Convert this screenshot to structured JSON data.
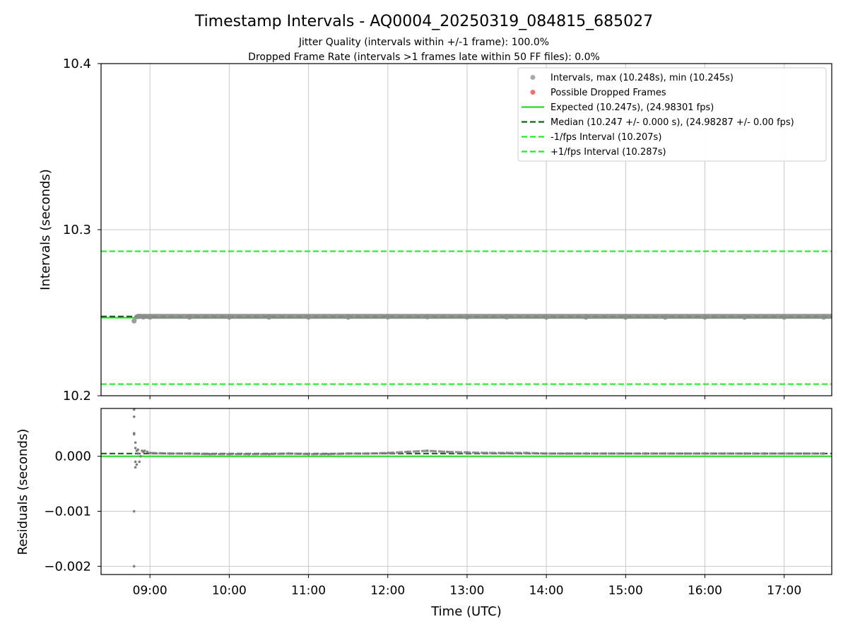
{
  "chart_data": [
    {
      "type": "scatter",
      "title": "Timestamp Intervals - AQ0004_20250319_084815_685027",
      "subtitles": [
        "Jitter Quality (intervals within +/-1 frame): 100.0%",
        "Dropped Frame Rate (intervals >1 frames late within 50 FF files): 0.0%"
      ],
      "ylabel": "Intervals (seconds)",
      "ylim": [
        10.2,
        10.4
      ],
      "yticks": [
        "10.2",
        "10.3",
        "10.4"
      ],
      "ytick_values": [
        10.2,
        10.3,
        10.4
      ],
      "grid": true,
      "legend_position": "top-right",
      "legend": [
        {
          "label": "Intervals, max (10.248s), min (10.245s)",
          "kind": "marker",
          "color": "#aaaaaa"
        },
        {
          "label": "Possible Dropped Frames",
          "kind": "marker",
          "color": "#f07070"
        },
        {
          "label": "Expected (10.247s), (24.98301 fps)",
          "kind": "solid",
          "color": "#22dd22"
        },
        {
          "label": "Median (10.247 +/- 0.000 s), (24.98287 +/- 0.00 fps)",
          "kind": "dashed",
          "color": "#116611"
        },
        {
          "label": "-1/fps Interval (10.207s)",
          "kind": "dashed",
          "color": "#22ee22"
        },
        {
          "label": "+1/fps Interval (10.287s)",
          "kind": "dashed",
          "color": "#22ee22"
        }
      ],
      "reference_lines": {
        "expected": 10.247,
        "median": 10.2473,
        "minus_interval": 10.207,
        "plus_interval": 10.287
      },
      "series": [
        {
          "name": "Intervals, max (10.248s), min (10.245s)",
          "x": [
            "08:48",
            "08:50",
            "08:52",
            "08:55",
            "09:00",
            "09:30",
            "10:00",
            "10:30",
            "11:00",
            "11:30",
            "12:00",
            "12:30",
            "13:00",
            "13:30",
            "14:00",
            "14:30",
            "15:00",
            "15:30",
            "16:00",
            "16:30",
            "17:00",
            "17:30"
          ],
          "values": [
            10.245,
            10.2475,
            10.2478,
            10.2474,
            10.2473,
            10.2473,
            10.2473,
            10.2473,
            10.2473,
            10.2473,
            10.2474,
            10.2475,
            10.2474,
            10.2474,
            10.2473,
            10.2473,
            10.2473,
            10.2473,
            10.2473,
            10.2473,
            10.2473,
            10.2473
          ]
        }
      ]
    },
    {
      "type": "scatter",
      "xlabel": "Time (UTC)",
      "ylabel": "Residuals (seconds)",
      "ylim": [
        -0.00215,
        0.00087
      ],
      "yticks": [
        "−0.002",
        "−0.001",
        "0.000"
      ],
      "ytick_values": [
        -0.002,
        -0.001,
        0.0
      ],
      "xlim": [
        "08:23",
        "17:36"
      ],
      "xticks": [
        "09:00",
        "10:00",
        "11:00",
        "12:00",
        "13:00",
        "14:00",
        "15:00",
        "16:00",
        "17:00"
      ],
      "grid": true,
      "reference_lines": {
        "expected": 0.0,
        "median": 5e-05
      },
      "series": [
        {
          "name": "Residuals",
          "x": [
            "08:48",
            "08:48",
            "08:48",
            "08:48",
            "08:48",
            "08:48",
            "08:49",
            "08:49",
            "08:49",
            "08:49",
            "08:50",
            "08:50",
            "08:51",
            "08:51",
            "08:52",
            "08:53",
            "08:54",
            "08:55",
            "08:56",
            "08:58",
            "09:00",
            "09:15",
            "09:30",
            "09:45",
            "10:00",
            "10:15",
            "10:30",
            "10:45",
            "11:00",
            "11:15",
            "11:30",
            "11:45",
            "12:00",
            "12:15",
            "12:30",
            "12:45",
            "13:00",
            "13:15",
            "13:30",
            "13:45",
            "14:00",
            "14:15",
            "14:30",
            "14:45",
            "15:00",
            "15:15",
            "15:30",
            "15:45",
            "16:00",
            "16:15",
            "16:30",
            "16:45",
            "17:00",
            "17:15",
            "17:30"
          ],
          "values": [
            0.00085,
            0.00072,
            -0.001,
            -0.002,
            0.00042,
            0.0004,
            0.00025,
            0.00015,
            -0.0001,
            -0.0002,
            0.0001,
            -0.00015,
            0.00012,
            5e-05,
            -0.0001,
            0.0,
            0.0001,
            8e-05,
            0.0001,
            8e-05,
            6e-05,
            5e-05,
            5e-05,
            4e-05,
            4e-05,
            4e-05,
            4e-05,
            5e-05,
            4e-05,
            4e-05,
            5e-05,
            5e-05,
            6e-05,
            8e-05,
            0.0001,
            8e-05,
            7e-05,
            6e-05,
            6e-05,
            6e-05,
            5e-05,
            5e-05,
            5e-05,
            5e-05,
            5e-05,
            5e-05,
            5e-05,
            5e-05,
            5e-05,
            5e-05,
            5e-05,
            5e-05,
            5e-05,
            5e-05,
            5e-05
          ]
        }
      ]
    }
  ],
  "colors": {
    "scatter": "#7f7f7f",
    "expected": "#22dd22",
    "median": "#116611",
    "interval": "#22ee22",
    "grid": "#c8c8c8"
  }
}
